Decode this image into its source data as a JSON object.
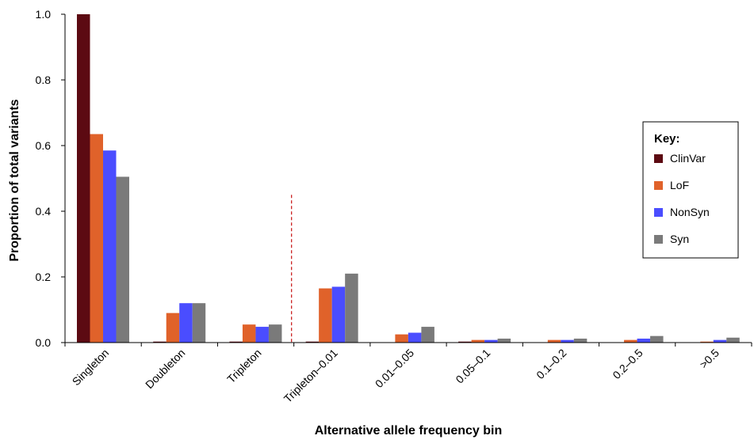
{
  "chart_data": {
    "type": "bar",
    "xlabel": "Alternative allele frequency bin",
    "ylabel": "Proportion of total variants",
    "ylim": [
      0,
      1.0
    ],
    "yticks": [
      "0.0",
      "0.2",
      "0.4",
      "0.6",
      "0.8",
      "1.0"
    ],
    "grid": false,
    "legend_position": "right",
    "legend_title": "Key:",
    "categories": [
      "Singleton",
      "Doubleton",
      "Tripleton",
      "Tripleton–0.01",
      "0.01–0.05",
      "0.05–0.1",
      "0.1–0.2",
      "0.2–0.5",
      ">0.5"
    ],
    "series": [
      {
        "name": "ClinVar",
        "color": "#5c0a12",
        "values": [
          1.0,
          0.003,
          0.003,
          0.003,
          0.0,
          0.003,
          0.0,
          0.0,
          0.0
        ]
      },
      {
        "name": "LoF",
        "color": "#e0622a",
        "values": [
          0.635,
          0.09,
          0.055,
          0.165,
          0.025,
          0.008,
          0.008,
          0.008,
          0.003
        ]
      },
      {
        "name": "NonSyn",
        "color": "#4a4dff",
        "values": [
          0.585,
          0.12,
          0.048,
          0.17,
          0.03,
          0.008,
          0.008,
          0.012,
          0.008
        ]
      },
      {
        "name": "Syn",
        "color": "#7a7a7a",
        "values": [
          0.505,
          0.12,
          0.055,
          0.21,
          0.048,
          0.012,
          0.012,
          0.02,
          0.015
        ]
      }
    ],
    "divider_after_category": "Tripleton",
    "divider_color": "#cc2222"
  }
}
